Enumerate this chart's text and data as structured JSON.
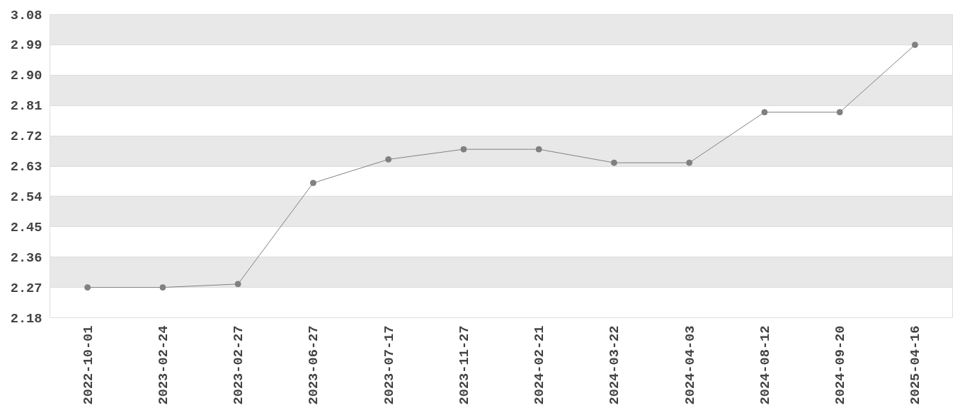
{
  "chart_data": {
    "type": "line",
    "categories": [
      "2022-10-01",
      "2023-02-24",
      "2023-02-27",
      "2023-06-27",
      "2023-07-17",
      "2023-11-27",
      "2024-02-21",
      "2024-03-22",
      "2024-04-03",
      "2024-08-12",
      "2024-09-20",
      "2025-04-16"
    ],
    "series": [
      {
        "color": "#808080",
        "values": [
          2.27,
          2.27,
          2.28,
          2.58,
          2.65,
          2.68,
          2.68,
          2.64,
          2.64,
          2.79,
          2.79,
          2.99
        ]
      }
    ],
    "ylim": [
      2.18,
      3.08
    ],
    "yticks": [
      2.18,
      2.27,
      2.36,
      2.45,
      2.54,
      2.63,
      2.72,
      2.81,
      {
        "value": 2.9,
        "label": "2.90"
      },
      2.99,
      3.08
    ],
    "grid": "y",
    "marker": "circle",
    "line_style": "solid"
  }
}
